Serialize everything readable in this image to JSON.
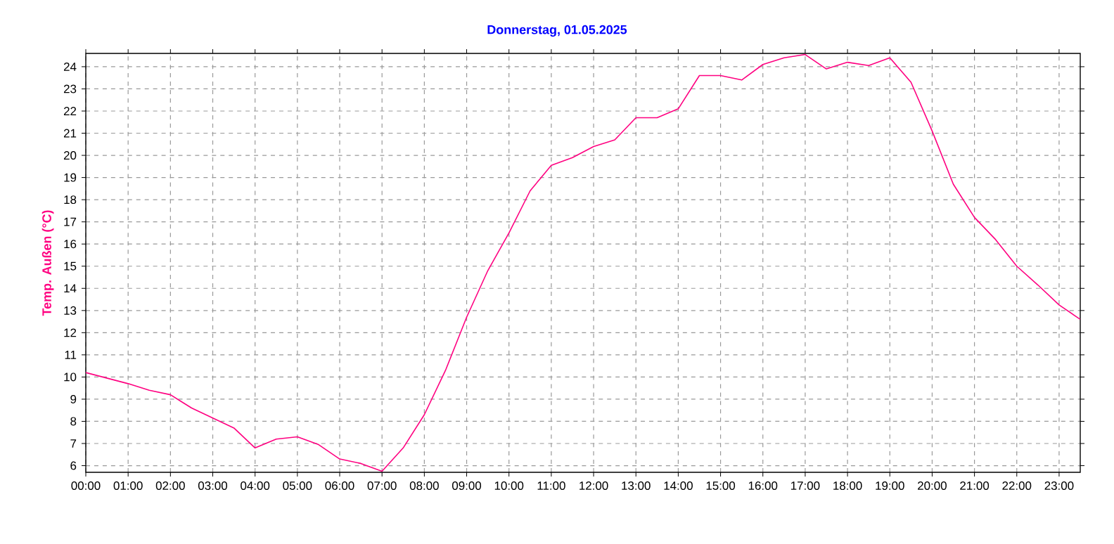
{
  "chart_data": {
    "type": "line",
    "title": "Donnerstag, 01.05.2025",
    "ylabel": "Temp. Außen  (°C)",
    "x": [
      0,
      0.5,
      1,
      1.5,
      2,
      2.5,
      3,
      3.5,
      4,
      4.5,
      5,
      5.5,
      6,
      6.5,
      7,
      7.5,
      8,
      8.5,
      9,
      9.5,
      10,
      10.5,
      11,
      11.5,
      12,
      12.5,
      13,
      13.5,
      14,
      14.5,
      15,
      15.5,
      16,
      16.5,
      17,
      17.5,
      18,
      18.5,
      19,
      19.5,
      20,
      20.5,
      21,
      21.5,
      22,
      22.5,
      23,
      23.5
    ],
    "series": [
      {
        "color": "#ff0080",
        "values": [
          10.2,
          9.95,
          9.7,
          9.4,
          9.2,
          8.6,
          8.15,
          7.7,
          6.8,
          7.2,
          7.3,
          6.95,
          6.3,
          6.1,
          5.75,
          6.8,
          8.3,
          10.3,
          12.7,
          14.8,
          16.5,
          18.4,
          19.55,
          19.9,
          20.4,
          20.7,
          21.7,
          21.7,
          22.1,
          23.6,
          23.6,
          23.4,
          24.1,
          24.4,
          24.55,
          23.9,
          24.2,
          24.05,
          24.4,
          23.3,
          21.1,
          18.7,
          17.2,
          16.2,
          15.0,
          14.15,
          13.25,
          12.6
        ]
      }
    ],
    "xlim": [
      0,
      23.5
    ],
    "xticks": [
      {
        "value": 0,
        "label": "00:00"
      },
      {
        "value": 1,
        "label": "01:00"
      },
      {
        "value": 2,
        "label": "02:00"
      },
      {
        "value": 3,
        "label": "03:00"
      },
      {
        "value": 4,
        "label": "04:00"
      },
      {
        "value": 5,
        "label": "05:00"
      },
      {
        "value": 6,
        "label": "06:00"
      },
      {
        "value": 7,
        "label": "07:00"
      },
      {
        "value": 8,
        "label": "08:00"
      },
      {
        "value": 9,
        "label": "09:00"
      },
      {
        "value": 10,
        "label": "10:00"
      },
      {
        "value": 11,
        "label": "11:00"
      },
      {
        "value": 12,
        "label": "12:00"
      },
      {
        "value": 13,
        "label": "13:00"
      },
      {
        "value": 14,
        "label": "14:00"
      },
      {
        "value": 15,
        "label": "15:00"
      },
      {
        "value": 16,
        "label": "16:00"
      },
      {
        "value": 17,
        "label": "17:00"
      },
      {
        "value": 18,
        "label": "18:00"
      },
      {
        "value": 19,
        "label": "19:00"
      },
      {
        "value": 20,
        "label": "20:00"
      },
      {
        "value": 21,
        "label": "21:00"
      },
      {
        "value": 22,
        "label": "22:00"
      },
      {
        "value": 23,
        "label": "23:00"
      }
    ],
    "ylim": [
      5.7,
      24.6
    ],
    "yticks": [
      6,
      7,
      8,
      9,
      10,
      11,
      12,
      13,
      14,
      15,
      16,
      17,
      18,
      19,
      20,
      21,
      22,
      23,
      24
    ],
    "grid": true,
    "line_style": "solid"
  }
}
